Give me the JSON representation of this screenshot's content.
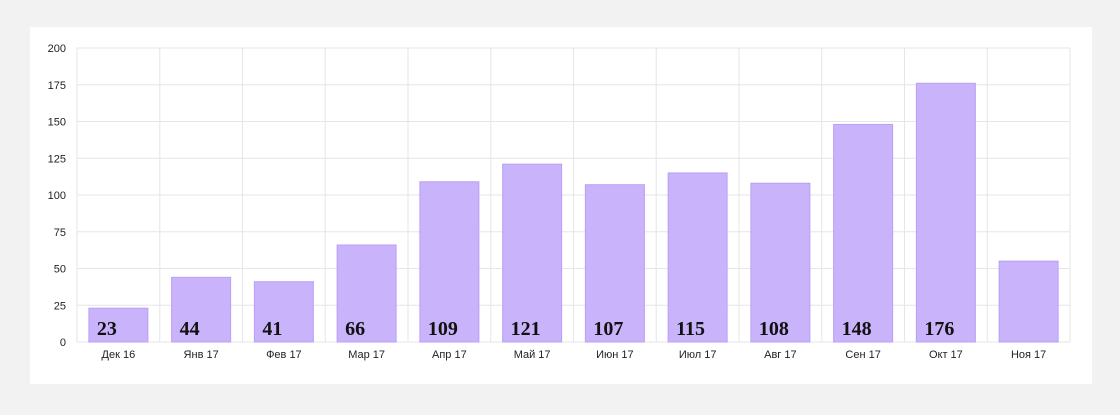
{
  "chart_data": {
    "type": "bar",
    "title": "",
    "xlabel": "",
    "ylabel": "",
    "categories": [
      "Дек 16",
      "Янв 17",
      "Фев 17",
      "Мар 17",
      "Апр 17",
      "Май 17",
      "Июн 17",
      "Июл 17",
      "Авг 17",
      "Сен 17",
      "Окт 17",
      "Ноя 17"
    ],
    "values": [
      23,
      44,
      41,
      66,
      109,
      121,
      107,
      115,
      108,
      148,
      176,
      55
    ],
    "data_labels": [
      "23",
      "44",
      "41",
      "66",
      "109",
      "121",
      "107",
      "115",
      "108",
      "148",
      "176",
      ""
    ],
    "ylim": [
      0,
      200
    ],
    "yticks": [
      "0",
      "25",
      "50",
      "75",
      "100",
      "125",
      "150",
      "175",
      "200"
    ],
    "grid": true,
    "legend": "none",
    "colors": {
      "bar": "#c9b3fb",
      "bar_stroke": "#b9a0f5",
      "grid": "#e6e6e6",
      "background": "#ffffff",
      "page": "#f2f2f2"
    }
  }
}
